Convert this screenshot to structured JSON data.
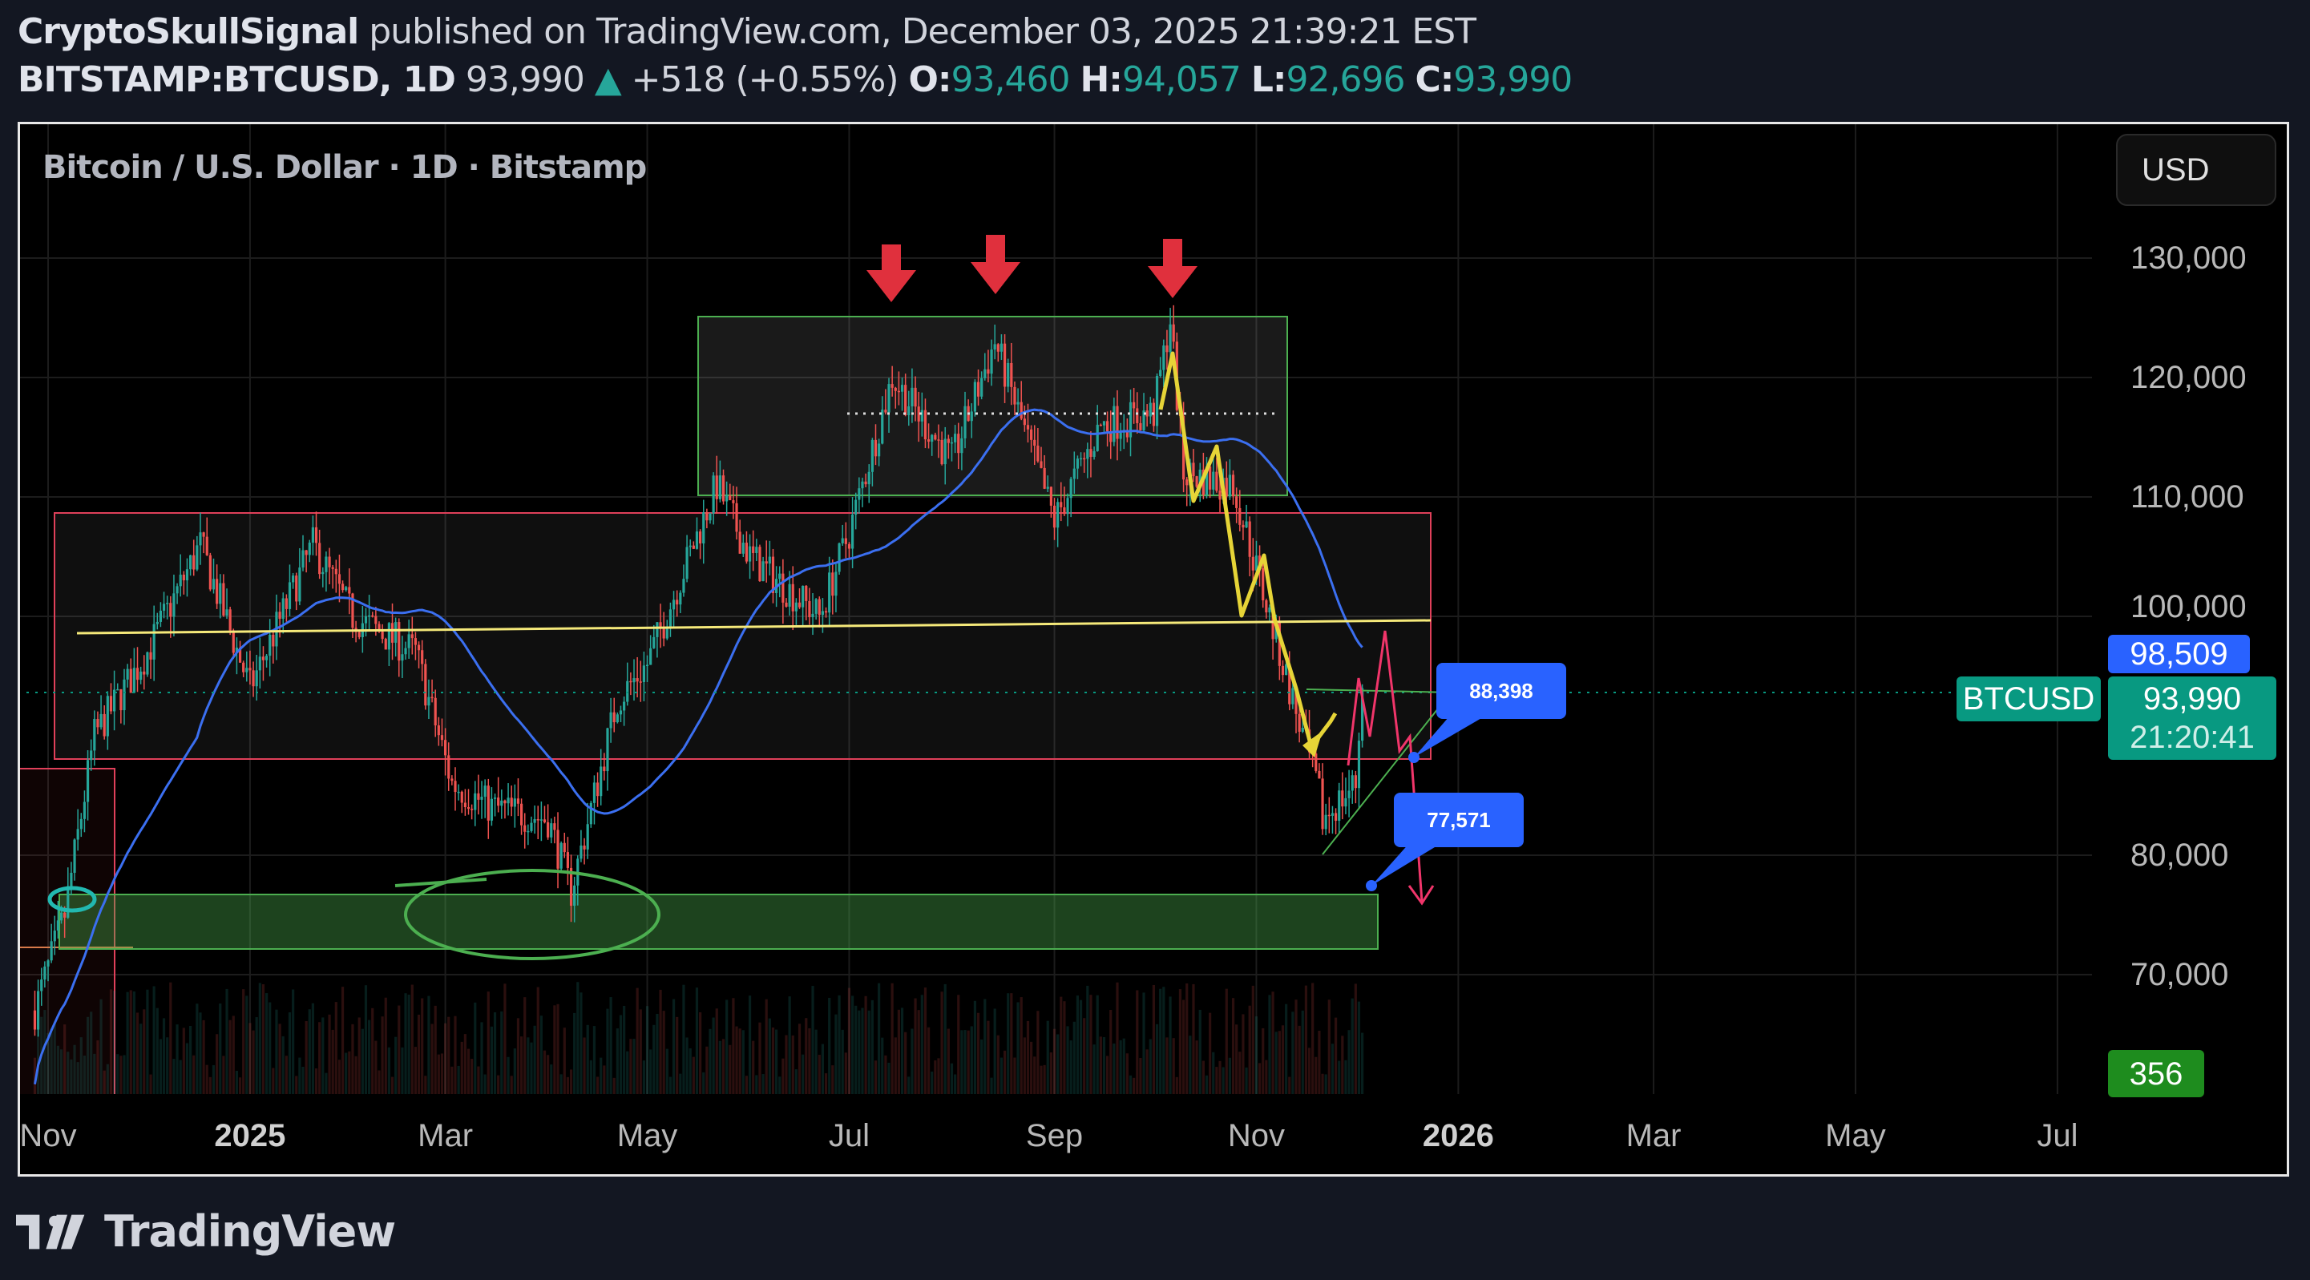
{
  "header": {
    "author": "CryptoSkullSignal",
    "published": "published on TradingView.com, December 03, 2025 21:39:21 EST",
    "symbol": "BITSTAMP:BTCUSD, 1D",
    "last": "93,990",
    "change": "+518 (+0.55%)",
    "o_label": "O:",
    "o": "93,460",
    "h_label": "H:",
    "h": "94,057",
    "l_label": "L:",
    "l": "92,696",
    "c_label": "C:",
    "c": "93,990"
  },
  "chart": {
    "title": "Bitcoin / U.S. Dollar · 1D · Bitstamp",
    "currency": "USD",
    "symbol_tag": "BTCUSD",
    "price_tag": "93,990",
    "countdown": "21:20:41",
    "ma_tag": "98,509",
    "volume_tag": "356",
    "callouts": [
      "88,398",
      "77,571"
    ],
    "colors": {
      "up": "#26a69a",
      "down": "#ef5350",
      "ma": "#3b6ff0",
      "accent": "#2962ff",
      "tag": "#089981"
    }
  },
  "chart_data": {
    "type": "candlestick",
    "title": "Bitcoin / U.S. Dollar · 1D · Bitstamp",
    "yticks": [
      "130,000",
      "120,000",
      "110,000",
      "100,000",
      "80,000",
      "70,000"
    ],
    "ytick_values": [
      130000,
      120000,
      110000,
      100000,
      80000,
      70000
    ],
    "xticks": [
      "Nov",
      "2025",
      "Mar",
      "May",
      "Jul",
      "Sep",
      "Nov",
      "2026",
      "Mar",
      "May",
      "Jul"
    ],
    "xtick_dates": [
      "2024-11-01",
      "2025-01-01",
      "2025-03-01",
      "2025-05-01",
      "2025-07-01",
      "2025-09-01",
      "2025-11-01",
      "2026-01-01",
      "2026-03-01",
      "2026-05-01",
      "2026-07-01"
    ],
    "ma_period": 50,
    "close_path": [
      [
        "2024-10-28",
        67000
      ],
      [
        "2024-11-06",
        75000
      ],
      [
        "2024-11-15",
        90000
      ],
      [
        "2024-12-01",
        97000
      ],
      [
        "2024-12-17",
        106000
      ],
      [
        "2025-01-01",
        94000
      ],
      [
        "2025-01-20",
        106000
      ],
      [
        "2025-02-01",
        100000
      ],
      [
        "2025-02-20",
        97000
      ],
      [
        "2025-03-03",
        86000
      ],
      [
        "2025-03-15",
        84000
      ],
      [
        "2025-04-01",
        83000
      ],
      [
        "2025-04-08",
        77000
      ],
      [
        "2025-04-22",
        93000
      ],
      [
        "2025-05-01",
        96000
      ],
      [
        "2025-05-22",
        111000
      ],
      [
        "2025-06-01",
        105000
      ],
      [
        "2025-06-22",
        100000
      ],
      [
        "2025-07-01",
        107000
      ],
      [
        "2025-07-14",
        120000
      ],
      [
        "2025-08-01",
        113000
      ],
      [
        "2025-08-14",
        123000
      ],
      [
        "2025-09-01",
        108000
      ],
      [
        "2025-09-15",
        116000
      ],
      [
        "2025-10-01",
        117000
      ],
      [
        "2025-10-06",
        125000
      ],
      [
        "2025-10-10",
        112000
      ],
      [
        "2025-10-25",
        111000
      ],
      [
        "2025-11-04",
        101000
      ],
      [
        "2025-11-20",
        85000
      ],
      [
        "2025-11-21",
        83000
      ],
      [
        "2025-12-01",
        86000
      ],
      [
        "2025-12-03",
        93990
      ]
    ]
  }
}
